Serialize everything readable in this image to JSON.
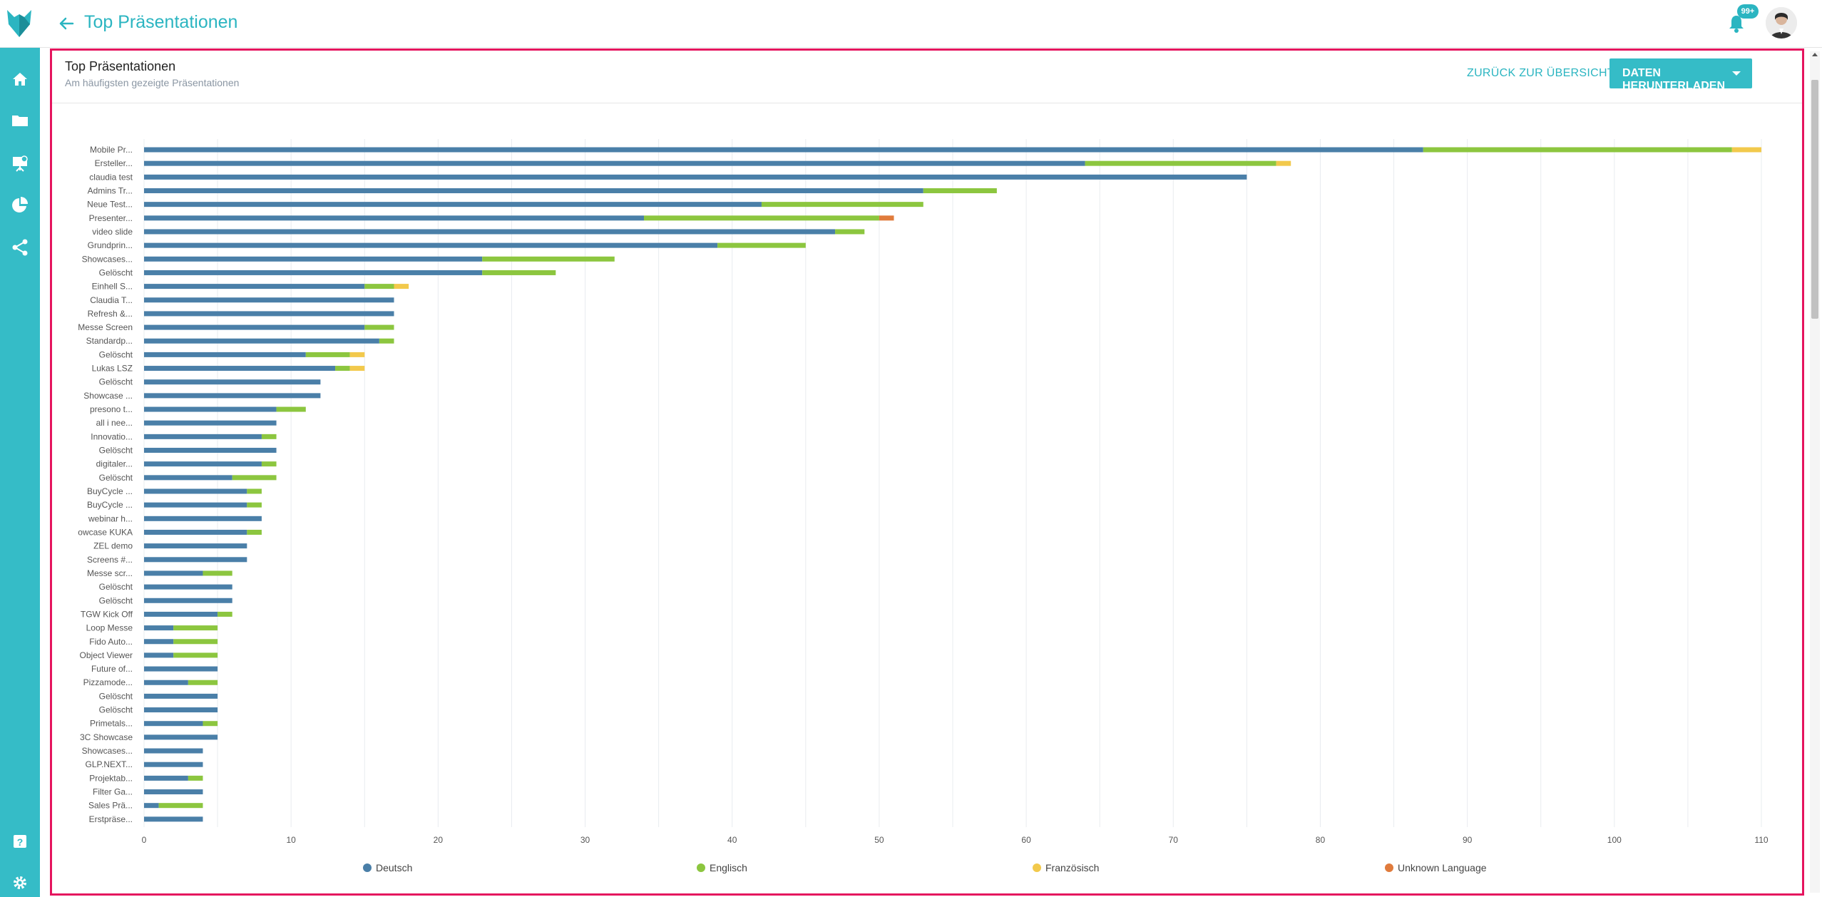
{
  "header": {
    "title": "Top Präsentationen",
    "notification_count": "99+",
    "icons": {
      "logo": "fox-logo-icon",
      "back": "arrow-left-icon",
      "bell": "bell-icon"
    }
  },
  "sidebar": {
    "items": [
      {
        "name": "home",
        "icon": "home-icon"
      },
      {
        "name": "folder",
        "icon": "folder-icon"
      },
      {
        "name": "presentations",
        "icon": "presentation-icon"
      },
      {
        "name": "analytics",
        "icon": "pie-chart-icon"
      },
      {
        "name": "share",
        "icon": "share-icon"
      },
      {
        "name": "help",
        "icon": "help-icon"
      },
      {
        "name": "settings",
        "icon": "gear-icon"
      }
    ]
  },
  "card": {
    "title": "Top Präsentationen",
    "subtitle": "Am häufigsten gezeigte Präsentationen",
    "back_label": "ZURÜCK ZUR ÜBERSICHT",
    "download_label": "DATEN HERUNTERLADEN"
  },
  "colors": {
    "accent": "#35bcc7",
    "frame": "#e5145e",
    "Deutsch": "#4a7fa8",
    "Englisch": "#8cc63f",
    "Französisch": "#f2c94c",
    "Unknown Language": "#e07b3c"
  },
  "chart_data": {
    "type": "bar",
    "orientation": "horizontal",
    "stacked": true,
    "xlim": [
      0,
      110
    ],
    "xticks": [
      0,
      10,
      20,
      30,
      40,
      50,
      60,
      70,
      80,
      90,
      100,
      110
    ],
    "grid": true,
    "legend_position": "bottom",
    "categories": [
      "Mobile Pr...",
      "Ersteller...",
      "claudia test",
      "Admins Tr...",
      "Neue Test...",
      "Presenter...",
      "video slide",
      "Grundprin...",
      "Showcases...",
      "Gelöscht",
      "Einhell S...",
      "Claudia T...",
      "Refresh &...",
      "Messe Screen",
      "Standardp...",
      "Gelöscht",
      "Lukas LSZ",
      "Gelöscht",
      "Showcase ...",
      "presono t...",
      "all i nee...",
      "Innovatio...",
      "Gelöscht",
      "digitaler...",
      "Gelöscht",
      "BuyCycle ...",
      "BuyCycle ...",
      "webinar h...",
      "owcase KUKA",
      "ZEL demo",
      "Screens #...",
      "Messe scr...",
      "Gelöscht",
      "Gelöscht",
      "TGW Kick Off",
      "Loop Messe",
      "Fido Auto...",
      "Object Viewer",
      "Future of...",
      "Pizzamode...",
      "Gelöscht",
      "Gelöscht",
      "Primetals...",
      "3C Showcase",
      "Showcases...",
      "GLP.NEXT...",
      "Projektab...",
      "Filter Ga...",
      "Sales Prä...",
      "Erstpräse..."
    ],
    "series": [
      {
        "name": "Deutsch",
        "values": [
          87,
          64,
          75,
          53,
          42,
          34,
          47,
          39,
          23,
          23,
          15,
          17,
          17,
          15,
          16,
          11,
          13,
          12,
          12,
          9,
          9,
          8,
          9,
          8,
          6,
          7,
          7,
          8,
          7,
          7,
          7,
          4,
          6,
          6,
          5,
          2,
          2,
          2,
          5,
          3,
          5,
          5,
          4,
          5,
          4,
          4,
          3,
          4,
          1,
          4
        ]
      },
      {
        "name": "Englisch",
        "values": [
          21,
          13,
          0,
          5,
          11,
          16,
          2,
          6,
          9,
          5,
          2,
          0,
          0,
          2,
          1,
          3,
          1,
          0,
          0,
          2,
          0,
          1,
          0,
          1,
          3,
          1,
          1,
          0,
          1,
          0,
          0,
          2,
          0,
          0,
          1,
          3,
          3,
          3,
          0,
          2,
          0,
          0,
          1,
          0,
          0,
          0,
          1,
          0,
          3,
          0
        ]
      },
      {
        "name": "Französisch",
        "values": [
          2,
          1,
          0,
          0,
          0,
          0,
          0,
          0,
          0,
          0,
          1,
          0,
          0,
          0,
          0,
          1,
          1,
          0,
          0,
          0,
          0,
          0,
          0,
          0,
          0,
          0,
          0,
          0,
          0,
          0,
          0,
          0,
          0,
          0,
          0,
          0,
          0,
          0,
          0,
          0,
          0,
          0,
          0,
          0,
          0,
          0,
          0,
          0,
          0,
          0
        ]
      },
      {
        "name": "Unknown Language",
        "values": [
          0,
          0,
          0,
          0,
          0,
          1,
          0,
          0,
          0,
          0,
          0,
          0,
          0,
          0,
          0,
          0,
          0,
          0,
          0,
          0,
          0,
          0,
          0,
          0,
          0,
          0,
          0,
          0,
          0,
          0,
          0,
          0,
          0,
          0,
          0,
          0,
          0,
          0,
          0,
          0,
          0,
          0,
          0,
          0,
          0,
          0,
          0,
          0,
          0,
          0
        ]
      }
    ]
  }
}
